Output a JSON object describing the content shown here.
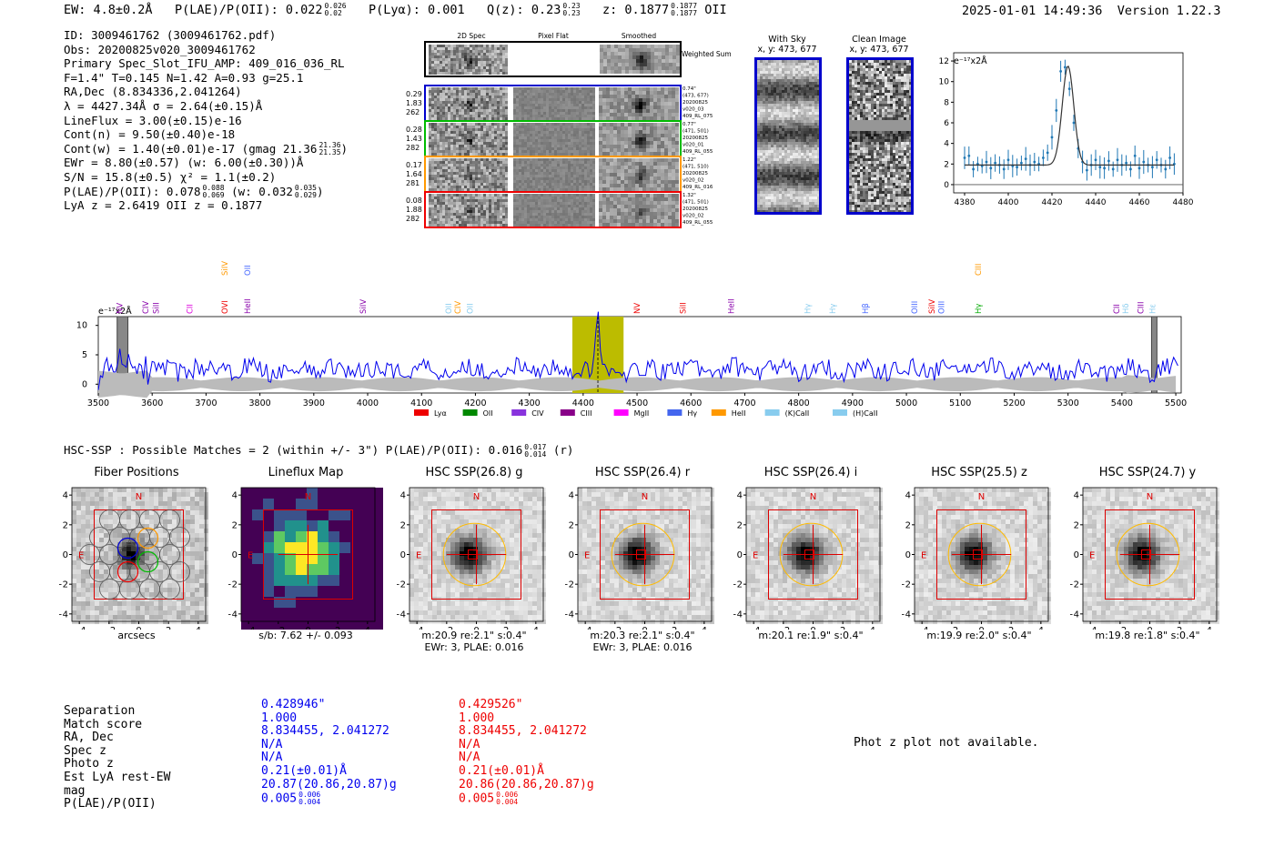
{
  "header": {
    "ew": "EW: 4.8±0.2Å",
    "plae_label": "P(LAE)/P(OII): 0.022",
    "plae_hi": "0.026",
    "plae_lo": "0.02",
    "plya": "P(Lyα): 0.001",
    "qz_label": "Q(z): 0.23",
    "qz_hi": "0.23",
    "qz_lo": "0.23",
    "z_label": "z: 0.1877",
    "z_hi": "0.1877",
    "z_lo": "0.1877",
    "z_line": "OII",
    "timestamp": "2025-01-01 14:49:36",
    "version": "Version 1.22.3"
  },
  "info_lines": [
    "ID: 3009461762 (3009461762.pdf)",
    "Obs: 20200825v020_3009461762",
    "Primary Spec_Slot_IFU_AMP: 409_016_036_RL",
    "F=1.4\"  T=0.145  N=1.42  A=0.93  g=25.1",
    "RA,Dec (8.834336,2.041264)",
    "λ = 4427.34Å  σ = 2.64(±0.15)Å",
    "LineFlux = 3.00(±0.15)e-16",
    "Cont(n) = 9.50(±0.40)e-18"
  ],
  "info_cont_w": "Cont(w) = 1.40(±0.01)e-17 (gmag 21.36",
  "info_cont_w_hi": "21.36",
  "info_cont_w_lo": "21.35",
  "info_ewr": "EWr = 8.80(±0.57) (w: 6.00(±0.30))Å",
  "info_sn": "S/N = 15.8(±0.5)  χ² = 1.1(±0.2)",
  "info_plae": "P(LAE)/P(OII): 0.078",
  "info_plae_hi": "0.088",
  "info_plae_lo": "0.069",
  "info_plae_w": "(w: 0.032",
  "info_plae_w_hi": "0.035",
  "info_plae_w_lo": "0.029",
  "info_lya": "LyA z = 2.6419  OII z = 0.1877",
  "cutouts": {
    "col_headers": [
      "2D Spec",
      "Pixel Flat",
      "Smoothed"
    ],
    "weighted_sum": "Weighted Sum",
    "rows": [
      {
        "vals": [
          "0.29",
          "1.83",
          "262"
        ],
        "side": [
          "0.74\"",
          "(473, 677)",
          "20200825",
          "v020_03",
          "409_RL_075"
        ],
        "color": "#0000cc"
      },
      {
        "vals": [
          "0.28",
          "1.43",
          "282"
        ],
        "side": [
          "0.77\"",
          "(471, 501)",
          "20200825",
          "v020_01",
          "409_RL_055"
        ],
        "color": "#00bb00"
      },
      {
        "vals": [
          "0.17",
          "1.64",
          "281"
        ],
        "side": [
          "1.22\"",
          "(471, 510)",
          "20200825",
          "v020_02",
          "409_RL_016"
        ],
        "color": "#ff9900"
      },
      {
        "vals": [
          "0.08",
          "1.88",
          "282"
        ],
        "side": [
          "1.32\"",
          "(471, 501)",
          "20200825",
          "v020_02",
          "409_RL_055"
        ],
        "color": "#ee0000"
      }
    ]
  },
  "sky_panels": {
    "with_sky_title": "With Sky",
    "with_sky_sub": "x, y: 473, 677",
    "clean_title": "Clean Image",
    "clean_sub": "x, y: 473, 677"
  },
  "zoom_chart": {
    "type": "line",
    "yunit": "e⁻¹⁷x2Å",
    "x_ticks": [
      4380,
      4400,
      4420,
      4440,
      4460,
      4480
    ],
    "y_ticks": [
      0,
      2,
      4,
      6,
      8,
      10,
      12
    ],
    "xlim": [
      4375,
      4480
    ],
    "ylim": [
      -0.8,
      12.8
    ]
  },
  "chart_data": [
    {
      "type": "line",
      "title": "",
      "ylabel": "e⁻¹⁷x2Å",
      "xlim": [
        4375,
        4480
      ],
      "ylim": [
        -0.8,
        12.8
      ],
      "series": [
        {
          "name": "data",
          "x": [
            4380,
            4382,
            4384,
            4386,
            4388,
            4390,
            4392,
            4394,
            4396,
            4398,
            4400,
            4402,
            4404,
            4406,
            4408,
            4410,
            4412,
            4414,
            4416,
            4418,
            4420,
            4422,
            4424,
            4426,
            4428,
            4430,
            4432,
            4434,
            4436,
            4438,
            4440,
            4442,
            4444,
            4446,
            4448,
            4450,
            4452,
            4454,
            4456,
            4458,
            4460,
            4462,
            4464,
            4466,
            4468,
            4470,
            4472,
            4474,
            4476
          ],
          "y": [
            2.6,
            2.8,
            1.5,
            2.0,
            1.8,
            2.2,
            1.6,
            2.1,
            1.9,
            1.5,
            2.4,
            1.8,
            1.7,
            2.1,
            2.5,
            1.9,
            2.2,
            2.0,
            2.6,
            3.1,
            4.6,
            7.2,
            11.0,
            11.4,
            9.3,
            6.0,
            3.5,
            2.2,
            1.4,
            1.9,
            2.4,
            1.7,
            1.6,
            2.3,
            1.5,
            2.4,
            1.9,
            2.1,
            1.5,
            2.8,
            1.6,
            2.2,
            1.9,
            1.7,
            2.4,
            1.9,
            1.5,
            2.6,
            2.0
          ]
        },
        {
          "name": "fit",
          "model": "gaussian",
          "continuum": 1.9,
          "amplitude": 9.6,
          "center": 4427.34,
          "sigma": 2.64
        }
      ]
    },
    {
      "type": "line",
      "title": "",
      "ylabel": "e⁻¹⁷x2Å",
      "xlim": [
        3500,
        5510
      ],
      "ylim": [
        -1.5,
        11.5
      ],
      "x_ticks": [
        3500,
        3600,
        3700,
        3800,
        3900,
        4000,
        4100,
        4200,
        4300,
        4400,
        4500,
        4600,
        4700,
        4800,
        4900,
        5000,
        5100,
        5200,
        5300,
        5400,
        5500
      ],
      "y_ticks": [
        0,
        5,
        10
      ],
      "highlight_range": [
        4380,
        4475
      ],
      "excluded_ranges": [
        [
          3535,
          3555
        ],
        [
          5455,
          5465
        ]
      ],
      "line_marker": 4427.34,
      "series": [
        {
          "name": "spectrum",
          "base": 2.5,
          "peak": 11.2,
          "peak_x": 4427
        }
      ]
    }
  ],
  "line_labels": [
    {
      "name": "NV",
      "x": 3545,
      "color": "#8800aa",
      "row": 0
    },
    {
      "name": "CIV",
      "x": 3593,
      "color": "#8800aa",
      "row": 0
    },
    {
      "name": "SiII",
      "x": 3612,
      "color": "#8800aa",
      "row": 0
    },
    {
      "name": "CII",
      "x": 3675,
      "color": "#dd00dd",
      "row": 0
    },
    {
      "name": "SiIV",
      "x": 3740,
      "color": "#ff9900",
      "row": 1
    },
    {
      "name": "OVI",
      "x": 3740,
      "color": "#ee0000",
      "row": 0
    },
    {
      "name": "OII",
      "x": 3782,
      "color": "#4466ff",
      "row": 1
    },
    {
      "name": "HeII",
      "x": 3782,
      "color": "#8800aa",
      "row": 0
    },
    {
      "name": "SiIV",
      "x": 3997,
      "color": "#8800aa",
      "row": 0
    },
    {
      "name": "OII",
      "x": 4155,
      "color": "#88ccee",
      "row": 0
    },
    {
      "name": "CIV",
      "x": 4172,
      "color": "#ff9900",
      "row": 0
    },
    {
      "name": "OII",
      "x": 4195,
      "color": "#88ccee",
      "row": 0
    },
    {
      "name": "NV",
      "x": 4505,
      "color": "#ee0000",
      "row": 0
    },
    {
      "name": "SiII",
      "x": 4590,
      "color": "#ee0000",
      "row": 0
    },
    {
      "name": "HeII",
      "x": 4680,
      "color": "#8800aa",
      "row": 0
    },
    {
      "name": "Hγ",
      "x": 4822,
      "color": "#88ccee",
      "row": 0
    },
    {
      "name": "Hγ",
      "x": 4868,
      "color": "#88ccee",
      "row": 0
    },
    {
      "name": "Hβ",
      "x": 4929,
      "color": "#4466ff",
      "row": 0
    },
    {
      "name": "OIII",
      "x": 5020,
      "color": "#4466ff",
      "row": 0
    },
    {
      "name": "SiIV",
      "x": 5052,
      "color": "#ee0000",
      "row": 0
    },
    {
      "name": "OIII",
      "x": 5070,
      "color": "#4466ff",
      "row": 0
    },
    {
      "name": "CIII",
      "x": 5138,
      "color": "#ff9900",
      "row": 1
    },
    {
      "name": "Hγ",
      "x": 5138,
      "color": "#00aa00",
      "row": 0
    },
    {
      "name": "CII",
      "x": 5395,
      "color": "#8800aa",
      "row": 0
    },
    {
      "name": "Hδ",
      "x": 5412,
      "color": "#88ccee",
      "row": 0
    },
    {
      "name": "CIII",
      "x": 5440,
      "color": "#8800aa",
      "row": 0
    },
    {
      "name": "Hε",
      "x": 5462,
      "color": "#88ccee",
      "row": 0
    }
  ],
  "legend": [
    {
      "label": "Lyα",
      "color": "#ee0000"
    },
    {
      "label": "OII",
      "color": "#008800"
    },
    {
      "label": "CIV",
      "color": "#8833dd"
    },
    {
      "label": "CIII",
      "color": "#880088"
    },
    {
      "label": "MgII",
      "color": "#ff00ff"
    },
    {
      "label": "Hγ",
      "color": "#4466ee"
    },
    {
      "label": "HeII",
      "color": "#ff9900"
    },
    {
      "label": "(K)CaII",
      "color": "#88ccee"
    },
    {
      "label": "(H)CaII",
      "color": "#88ccee"
    }
  ],
  "hsc": {
    "title": "HSC-SSP : Possible Matches = 2 (within +/- 3\")  P(LAE)/P(OII): 0.016",
    "hi": "0.017",
    "lo": "0.014",
    "band": "(r)"
  },
  "stamps": [
    {
      "title": "Fiber Positions",
      "sub1": "arcsecs",
      "sub2": "",
      "kind": "fiber"
    },
    {
      "title": "Lineflux Map",
      "sub1": "s/b: 7.62 +/- 0.093",
      "sub2": "",
      "kind": "flux"
    },
    {
      "title": "HSC SSP(26.8) g",
      "sub1": "m:20.9  re:2.1\"  s:0.4\"",
      "sub2": "EWr: 3, PLAE: 0.016",
      "kind": "hsc"
    },
    {
      "title": "HSC SSP(26.4) r",
      "sub1": "m:20.3  re:2.1\"  s:0.4\"",
      "sub2": "EWr: 3, PLAE: 0.016",
      "kind": "hsc"
    },
    {
      "title": "HSC SSP(26.4) i",
      "sub1": "m:20.1  re:1.9\"  s:0.4\"",
      "sub2": "",
      "kind": "hsc"
    },
    {
      "title": "HSC SSP(25.5) z",
      "sub1": "m:19.9  re:2.0\"  s:0.4\"",
      "sub2": "",
      "kind": "hsc"
    },
    {
      "title": "HSC SSP(24.7) y",
      "sub1": "m:19.8  re:1.8\"  s:0.4\"",
      "sub2": "",
      "kind": "hsc"
    }
  ],
  "stamp_axes": {
    "ticks": [
      "-4",
      "-2",
      "0",
      "2",
      "4"
    ],
    "north": "N",
    "east": "E"
  },
  "bottom_table": {
    "labels": [
      "Separation",
      "Match score",
      "RA, Dec",
      "Spec z",
      "Photo z",
      "Est LyA rest-EW",
      "mag",
      "P(LAE)/P(OII)"
    ],
    "col1": [
      "0.428946\"",
      "1.000",
      "8.834455, 2.041272",
      "N/A",
      "N/A",
      "0.21(±0.01)Å",
      "20.87(20.86,20.87)g",
      "0.005"
    ],
    "col1_plae_hi": "0.006",
    "col1_plae_lo": "0.004",
    "col2": [
      "0.429526\"",
      "1.000",
      "8.834455, 2.041272",
      "N/A",
      "N/A",
      "0.21(±0.01)Å",
      "20.86(20.86,20.87)g",
      "0.005"
    ],
    "col2_plae_hi": "0.006",
    "col2_plae_lo": "0.004",
    "col1_color": "#0000ee",
    "col2_color": "#ee0000"
  },
  "photz_note": "Phot z plot not available."
}
